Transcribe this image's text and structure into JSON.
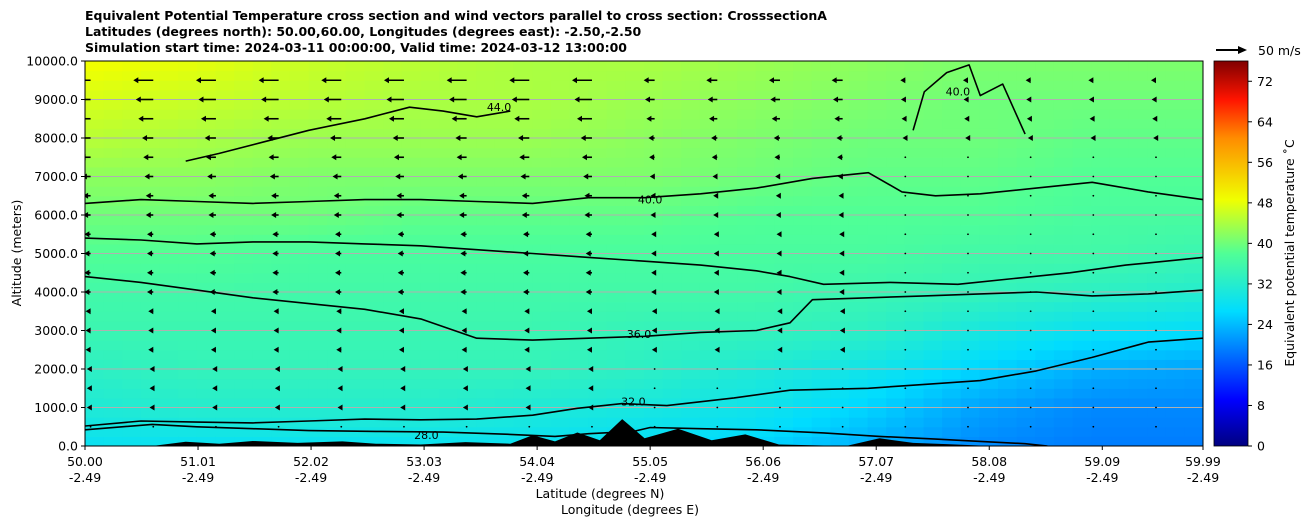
{
  "chart_data": {
    "type": "heatmap",
    "title_lines": [
      "Equivalent Potential Temperature cross section and wind vectors parallel to cross section: CrosssectionA",
      "Latitudes (degrees north): 50.00,60.00, Longitudes (degrees east): -2.50,-2.50",
      "Simulation start time: 2024-03-11 00:00:00, Valid time: 2024-03-12 13:00:00"
    ],
    "ylabel": "Altitude (meters)",
    "xlabel_lines": [
      "Latitude (degrees N)",
      "Longitude (degrees E)"
    ],
    "ylim": [
      0,
      10000
    ],
    "xlim": [
      50.0,
      59.99
    ],
    "y_ticks": [
      {
        "value": 0,
        "label": "0.0"
      },
      {
        "value": 1000,
        "label": "1000.0"
      },
      {
        "value": 2000,
        "label": "2000.0"
      },
      {
        "value": 3000,
        "label": "3000.0"
      },
      {
        "value": 4000,
        "label": "4000.0"
      },
      {
        "value": 5000,
        "label": "5000.0"
      },
      {
        "value": 6000,
        "label": "6000.0"
      },
      {
        "value": 7000,
        "label": "7000.0"
      },
      {
        "value": 8000,
        "label": "8000.0"
      },
      {
        "value": 9000,
        "label": "9000.0"
      },
      {
        "value": 10000,
        "label": "10000.0"
      }
    ],
    "x_ticks": [
      {
        "value": 50.0,
        "lat": "50.00",
        "lon": "-2.49"
      },
      {
        "value": 51.01,
        "lat": "51.01",
        "lon": "-2.49"
      },
      {
        "value": 52.02,
        "lat": "52.02",
        "lon": "-2.49"
      },
      {
        "value": 53.03,
        "lat": "53.03",
        "lon": "-2.49"
      },
      {
        "value": 54.04,
        "lat": "54.04",
        "lon": "-2.49"
      },
      {
        "value": 55.05,
        "lat": "55.05",
        "lon": "-2.49"
      },
      {
        "value": 56.06,
        "lat": "56.06",
        "lon": "-2.49"
      },
      {
        "value": 57.07,
        "lat": "57.07",
        "lon": "-2.49"
      },
      {
        "value": 58.08,
        "lat": "58.08",
        "lon": "-2.49"
      },
      {
        "value": 59.09,
        "lat": "59.09",
        "lon": "-2.49"
      },
      {
        "value": 59.99,
        "lat": "59.99",
        "lon": "-2.49"
      }
    ],
    "grid": "horizontal",
    "colorbar": {
      "label": "Equivalent potential temperature ˚C",
      "range": [
        0,
        76
      ],
      "ticks": [
        "0",
        "8",
        "16",
        "24",
        "32",
        "40",
        "48",
        "56",
        "64",
        "72"
      ],
      "tick_values": [
        0,
        8,
        16,
        24,
        32,
        40,
        48,
        56,
        64,
        72
      ]
    },
    "quiver_key": {
      "label": "50 m/s",
      "speed": 50
    },
    "color_fill_levels": [
      {
        "alt": 0,
        "temps": [
          28,
          28,
          28,
          28,
          28,
          27,
          26,
          23,
          20,
          19,
          19
        ]
      },
      {
        "alt": 1000,
        "temps": [
          31,
          32,
          32,
          32,
          31,
          30,
          29,
          26,
          22,
          20,
          20
        ]
      },
      {
        "alt": 2000,
        "temps": [
          33,
          34,
          34,
          34,
          34,
          33,
          31,
          29,
          26,
          23,
          22
        ]
      },
      {
        "alt": 3000,
        "temps": [
          35,
          35,
          35,
          35,
          35,
          34,
          34,
          33,
          30,
          28,
          27
        ]
      },
      {
        "alt": 4000,
        "temps": [
          36,
          36,
          36,
          36,
          36,
          36,
          36,
          35,
          34,
          33,
          32
        ]
      },
      {
        "alt": 5000,
        "temps": [
          38,
          38,
          37,
          37,
          37,
          37,
          37,
          37,
          36,
          36,
          35
        ]
      },
      {
        "alt": 6000,
        "temps": [
          40,
          40,
          40,
          39,
          39,
          39,
          38,
          38,
          38,
          37,
          37
        ]
      },
      {
        "alt": 7000,
        "temps": [
          42,
          42,
          41,
          41,
          41,
          41,
          40,
          39,
          39,
          38,
          38
        ]
      },
      {
        "alt": 8000,
        "temps": [
          45,
          44,
          43,
          43,
          43,
          42,
          41,
          40,
          40,
          39,
          39
        ]
      },
      {
        "alt": 9000,
        "temps": [
          47,
          46,
          45,
          44,
          44,
          43,
          42,
          41,
          40,
          40,
          40
        ]
      },
      {
        "alt": 10000,
        "temps": [
          49,
          48,
          46,
          45,
          44,
          44,
          43,
          42,
          41,
          41,
          41
        ]
      }
    ],
    "contours": [
      {
        "label": "28.0",
        "label_at": {
          "lat": 53.05,
          "alt": 180
        },
        "points": [
          [
            50.0,
            420
          ],
          [
            50.6,
            560
          ],
          [
            51.0,
            500
          ],
          [
            51.5,
            450
          ],
          [
            52.0,
            400
          ],
          [
            52.6,
            380
          ],
          [
            53.2,
            360
          ],
          [
            53.8,
            300
          ],
          [
            54.2,
            250
          ],
          [
            54.5,
            320
          ],
          [
            54.9,
            380
          ],
          [
            55.05,
            480
          ],
          [
            55.5,
            450
          ],
          [
            56.0,
            420
          ],
          [
            56.6,
            340
          ],
          [
            57.1,
            250
          ],
          [
            57.6,
            180
          ],
          [
            58.0,
            120
          ],
          [
            58.4,
            60
          ],
          [
            58.6,
            0
          ]
        ]
      },
      {
        "label": "32.0",
        "label_at": {
          "lat": 54.9,
          "alt": 1050
        },
        "points": [
          [
            50.0,
            520
          ],
          [
            50.5,
            650
          ],
          [
            51.0,
            620
          ],
          [
            51.5,
            600
          ],
          [
            52.0,
            650
          ],
          [
            52.5,
            700
          ],
          [
            53.0,
            680
          ],
          [
            53.5,
            700
          ],
          [
            54.0,
            800
          ],
          [
            54.4,
            980
          ],
          [
            54.8,
            1100
          ],
          [
            55.2,
            1050
          ],
          [
            55.8,
            1250
          ],
          [
            56.3,
            1450
          ],
          [
            57.0,
            1500
          ],
          [
            57.5,
            1600
          ],
          [
            58.0,
            1700
          ],
          [
            58.5,
            1950
          ],
          [
            59.0,
            2300
          ],
          [
            59.5,
            2700
          ],
          [
            59.99,
            2800
          ]
        ]
      },
      {
        "label": "36.0",
        "label_at": {
          "lat": 54.95,
          "alt": 2800
        },
        "points": [
          [
            50.0,
            4400
          ],
          [
            50.5,
            4250
          ],
          [
            51.0,
            4050
          ],
          [
            51.5,
            3850
          ],
          [
            52.0,
            3700
          ],
          [
            52.5,
            3550
          ],
          [
            53.0,
            3300
          ],
          [
            53.5,
            2800
          ],
          [
            54.0,
            2750
          ],
          [
            54.5,
            2800
          ],
          [
            55.0,
            2850
          ],
          [
            55.5,
            2950
          ],
          [
            56.0,
            3000
          ],
          [
            56.3,
            3200
          ],
          [
            56.5,
            3800
          ],
          [
            57.0,
            3850
          ],
          [
            57.5,
            3900
          ],
          [
            58.0,
            3950
          ],
          [
            58.5,
            4000
          ],
          [
            59.0,
            3900
          ],
          [
            59.5,
            3950
          ],
          [
            59.99,
            4050
          ]
        ]
      },
      {
        "label": "",
        "label_at": null,
        "points": [
          [
            50.0,
            5400
          ],
          [
            50.5,
            5350
          ],
          [
            51.0,
            5250
          ],
          [
            51.5,
            5300
          ],
          [
            52.0,
            5300
          ],
          [
            52.5,
            5250
          ],
          [
            53.0,
            5200
          ],
          [
            53.5,
            5100
          ],
          [
            54.0,
            5000
          ],
          [
            54.5,
            4900
          ],
          [
            55.0,
            4800
          ],
          [
            55.5,
            4700
          ],
          [
            56.0,
            4550
          ],
          [
            56.3,
            4400
          ],
          [
            56.6,
            4200
          ],
          [
            57.2,
            4250
          ],
          [
            57.8,
            4200
          ],
          [
            58.3,
            4350
          ],
          [
            58.8,
            4500
          ],
          [
            59.3,
            4700
          ],
          [
            59.99,
            4900
          ]
        ]
      },
      {
        "label": "40.0",
        "label_at": {
          "lat": 55.05,
          "alt": 6300
        },
        "points": [
          [
            50.0,
            6300
          ],
          [
            50.5,
            6400
          ],
          [
            51.0,
            6350
          ],
          [
            51.5,
            6300
          ],
          [
            52.0,
            6350
          ],
          [
            52.5,
            6400
          ],
          [
            53.0,
            6400
          ],
          [
            53.5,
            6350
          ],
          [
            54.0,
            6300
          ],
          [
            54.5,
            6450
          ],
          [
            55.0,
            6450
          ],
          [
            55.5,
            6550
          ],
          [
            56.0,
            6700
          ],
          [
            56.5,
            6950
          ],
          [
            57.0,
            7100
          ],
          [
            57.3,
            6600
          ],
          [
            57.6,
            6500
          ],
          [
            58.0,
            6550
          ],
          [
            58.5,
            6700
          ],
          [
            59.0,
            6850
          ],
          [
            59.5,
            6600
          ],
          [
            59.99,
            6400
          ]
        ]
      },
      {
        "label": "44.0",
        "label_at": {
          "lat": 53.7,
          "alt": 8700
        },
        "points": [
          [
            50.9,
            7400
          ],
          [
            51.2,
            7600
          ],
          [
            51.6,
            7900
          ],
          [
            52.0,
            8200
          ],
          [
            52.5,
            8500
          ],
          [
            52.9,
            8800
          ],
          [
            53.2,
            8700
          ],
          [
            53.5,
            8550
          ],
          [
            53.8,
            8700
          ]
        ]
      },
      {
        "label": "40.0",
        "label_at": {
          "lat": 57.8,
          "alt": 9100
        },
        "points": [
          [
            57.4,
            8200
          ],
          [
            57.5,
            9200
          ],
          [
            57.7,
            9700
          ],
          [
            57.9,
            9900
          ],
          [
            58.0,
            9100
          ],
          [
            58.2,
            9400
          ],
          [
            58.4,
            8100
          ]
        ]
      }
    ],
    "terrain": [
      {
        "lat": 50.0,
        "alt": 0
      },
      {
        "lat": 50.6,
        "alt": 0
      },
      {
        "lat": 50.9,
        "alt": 110
      },
      {
        "lat": 51.2,
        "alt": 60
      },
      {
        "lat": 51.5,
        "alt": 130
      },
      {
        "lat": 51.9,
        "alt": 80
      },
      {
        "lat": 52.3,
        "alt": 120
      },
      {
        "lat": 52.6,
        "alt": 60
      },
      {
        "lat": 53.0,
        "alt": 40
      },
      {
        "lat": 53.4,
        "alt": 100
      },
      {
        "lat": 53.8,
        "alt": 60
      },
      {
        "lat": 54.0,
        "alt": 280
      },
      {
        "lat": 54.2,
        "alt": 120
      },
      {
        "lat": 54.4,
        "alt": 350
      },
      {
        "lat": 54.6,
        "alt": 150
      },
      {
        "lat": 54.8,
        "alt": 700
      },
      {
        "lat": 55.0,
        "alt": 200
      },
      {
        "lat": 55.3,
        "alt": 450
      },
      {
        "lat": 55.6,
        "alt": 150
      },
      {
        "lat": 55.9,
        "alt": 300
      },
      {
        "lat": 56.2,
        "alt": 40
      },
      {
        "lat": 56.8,
        "alt": 0
      },
      {
        "lat": 57.1,
        "alt": 200
      },
      {
        "lat": 57.4,
        "alt": 80
      },
      {
        "lat": 57.7,
        "alt": 50
      },
      {
        "lat": 58.1,
        "alt": 0
      },
      {
        "lat": 59.99,
        "alt": 0
      }
    ],
    "wind_vectors": {
      "lat_step": 0.56,
      "levels": [
        {
          "alt": 9500,
          "u": -16
        },
        {
          "alt": 9000,
          "u": -14
        },
        {
          "alt": 8500,
          "u": -12
        },
        {
          "alt": 8000,
          "u": -9
        },
        {
          "alt": 7500,
          "u": -8
        },
        {
          "alt": 7000,
          "u": -7
        },
        {
          "alt": 6500,
          "u": -6
        },
        {
          "alt": 6000,
          "u": -6
        },
        {
          "alt": 5500,
          "u": -5
        },
        {
          "alt": 5000,
          "u": -5
        },
        {
          "alt": 4500,
          "u": -5
        },
        {
          "alt": 4000,
          "u": -5
        },
        {
          "alt": 3500,
          "u": -4
        },
        {
          "alt": 3000,
          "u": -4
        },
        {
          "alt": 2500,
          "u": -4
        },
        {
          "alt": 2000,
          "u": -3
        },
        {
          "alt": 1500,
          "u": -3
        },
        {
          "alt": 1000,
          "u": -3
        },
        {
          "alt": 500,
          "u": -2
        }
      ]
    }
  }
}
